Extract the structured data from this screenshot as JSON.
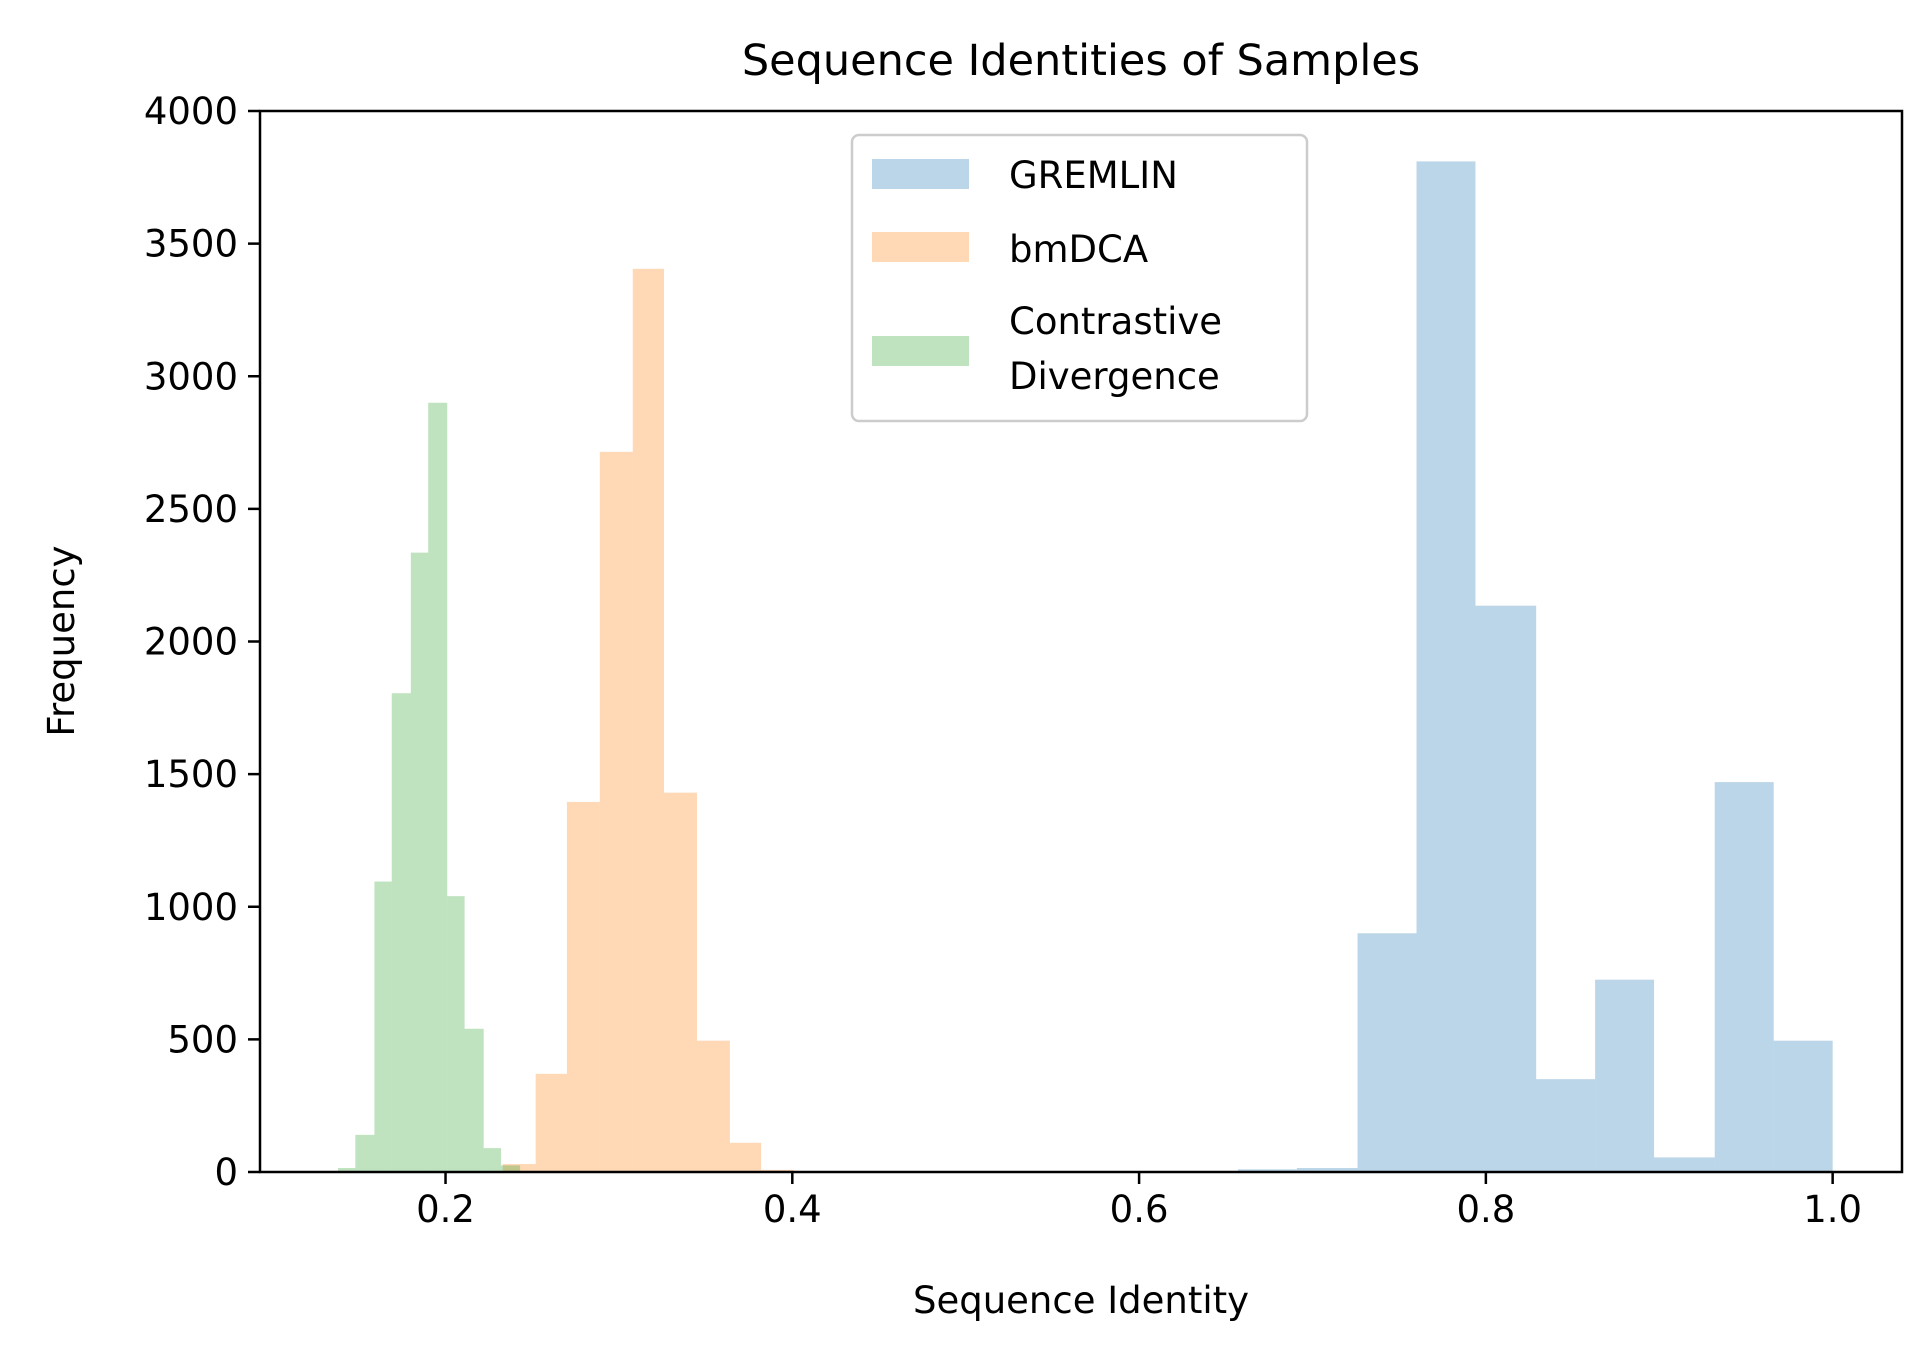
{
  "chart_data": {
    "type": "bar",
    "title": "Sequence Identities of Samples",
    "xlabel": "Sequence Identity",
    "ylabel": "Frequency",
    "xlim": [
      0.093,
      1.04
    ],
    "ylim": [
      0,
      4000
    ],
    "xticks": [
      0.2,
      0.4,
      0.6,
      0.8,
      1.0
    ],
    "xtick_labels": [
      "0.2",
      "0.4",
      "0.6",
      "0.8",
      "1.0"
    ],
    "yticks": [
      0,
      500,
      1000,
      1500,
      2000,
      2500,
      3000,
      3500,
      4000
    ],
    "ytick_labels": [
      "0",
      "500",
      "1000",
      "1500",
      "2000",
      "2500",
      "3000",
      "3500",
      "4000"
    ],
    "grid": false,
    "legend_position": "top-center",
    "alpha": 0.3,
    "series": [
      {
        "name": "GREMLIN",
        "color": "#1f77b4",
        "bins": [
          0.657,
          0.691,
          0.726,
          0.76,
          0.794,
          0.829,
          0.863,
          0.897,
          0.932,
          0.966,
          1.0
        ],
        "counts": [
          10,
          15,
          900,
          3810,
          2135,
          350,
          725,
          55,
          1470,
          495
        ]
      },
      {
        "name": "bmDCA",
        "color": "#ff7f0e",
        "bins": [
          0.233,
          0.252,
          0.27,
          0.289,
          0.308,
          0.326,
          0.345,
          0.364,
          0.382,
          0.401,
          0.42
        ],
        "counts": [
          30,
          370,
          1395,
          2715,
          3405,
          1430,
          495,
          110,
          8,
          2
        ]
      },
      {
        "name": "Contrastive Divergence",
        "legend_lines": [
          "Contrastive",
          "Divergence"
        ],
        "color": "#2ca02c",
        "bins": [
          0.138,
          0.148,
          0.159,
          0.169,
          0.18,
          0.19,
          0.201,
          0.211,
          0.222,
          0.232,
          0.243
        ],
        "counts": [
          15,
          140,
          1095,
          1805,
          2335,
          2900,
          1040,
          540,
          90,
          25
        ]
      }
    ]
  }
}
